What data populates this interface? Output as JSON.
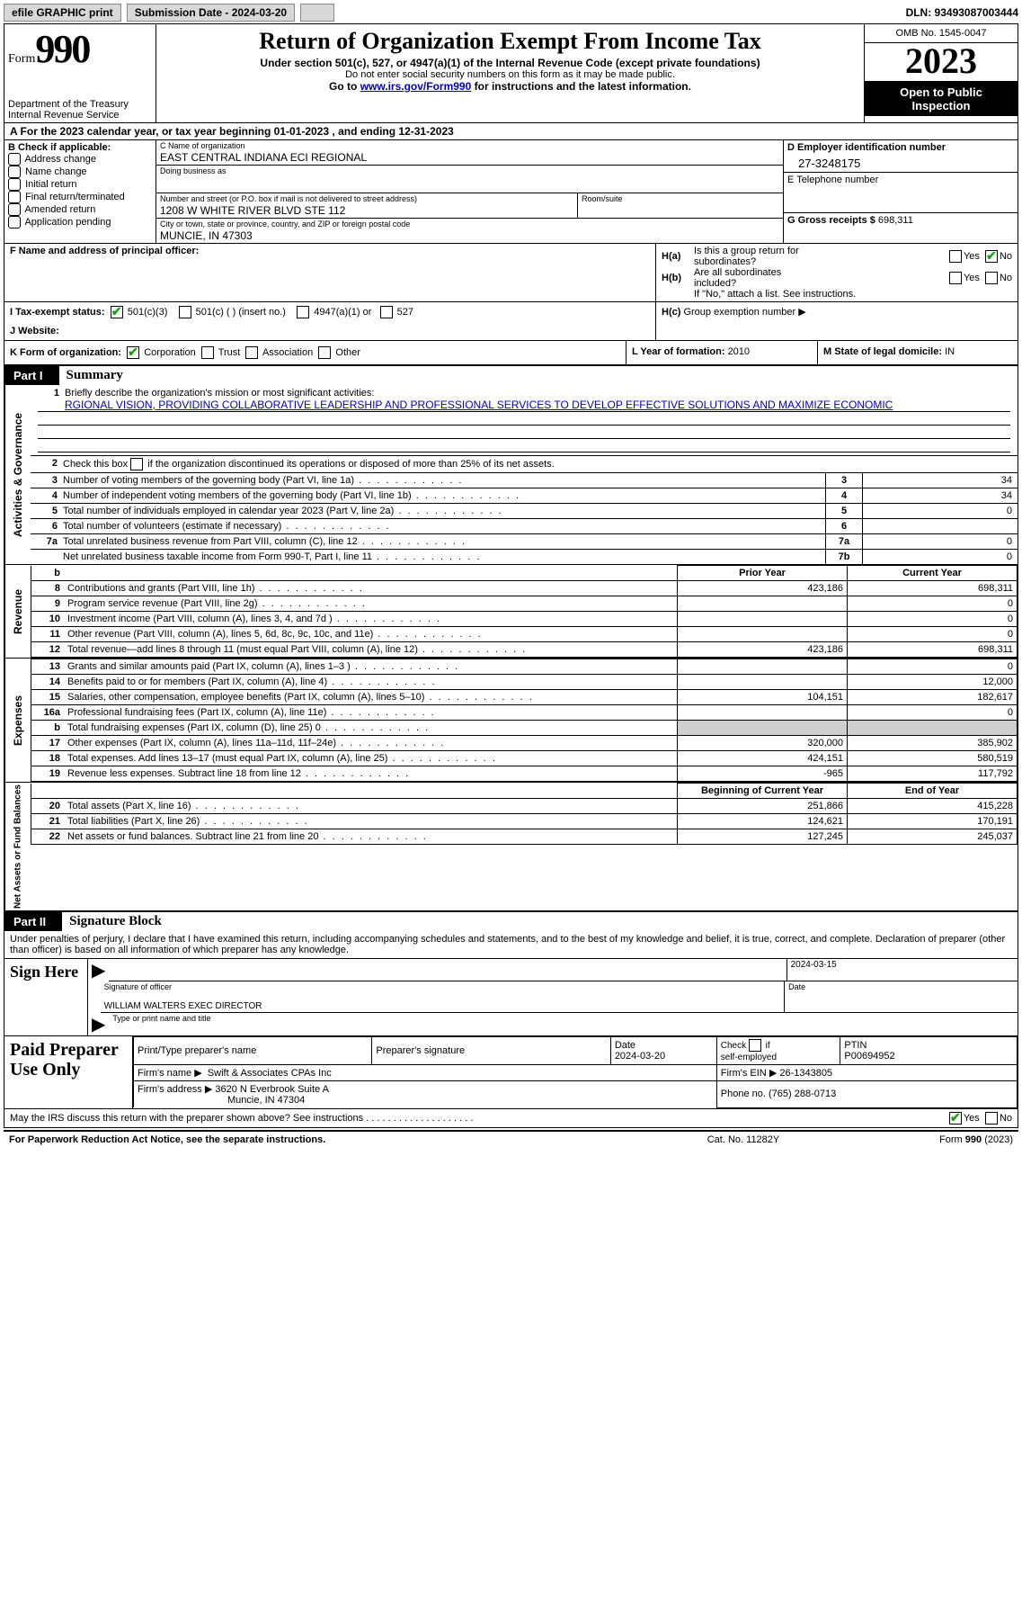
{
  "topbar": {
    "efile": "efile GRAPHIC print",
    "sub_label": "Submission Date - 2024-03-20",
    "dln": "DLN: 93493087003444"
  },
  "header": {
    "form_word": "Form",
    "form_num": "990",
    "dept": "Department of the Treasury",
    "irs": "Internal Revenue Service",
    "title": "Return of Organization Exempt From Income Tax",
    "sub1": "Under section 501(c), 527, or 4947(a)(1) of the Internal Revenue Code (except private foundations)",
    "sub2": "Do not enter social security numbers on this form as it may be made public.",
    "sub3_pre": "Go to ",
    "sub3_link": "www.irs.gov/Form990",
    "sub3_post": " for instructions and the latest information.",
    "omb": "OMB No. 1545-0047",
    "year": "2023",
    "open1": "Open to Public",
    "open2": "Inspection"
  },
  "calendar": {
    "pre": "A  For the 2023 calendar year, or tax year beginning ",
    "begin": "01-01-2023",
    "mid": " , and ending ",
    "end": "12-31-2023"
  },
  "boxB": {
    "label": "B Check if applicable:",
    "items": [
      "Address change",
      "Name change",
      "Initial return",
      "Final return/terminated",
      "Amended return",
      "Application pending"
    ]
  },
  "boxC": {
    "name_lbl": "C Name of organization",
    "name": "EAST CENTRAL INDIANA ECI REGIONAL",
    "dba_lbl": "Doing business as",
    "dba": "",
    "street_lbl": "Number and street (or P.O. box if mail is not delivered to street address)",
    "street": "1208 W WHITE RIVER BLVD STE 112",
    "suite_lbl": "Room/suite",
    "suite": "",
    "city_lbl": "City or town, state or province, country, and ZIP or foreign postal code",
    "city": "MUNCIE, IN  47303"
  },
  "boxD": {
    "ein_lbl": "D Employer identification number",
    "ein": "27-3248175",
    "phone_lbl": "E Telephone number",
    "phone": "",
    "gross_lbl": "G Gross receipts $ ",
    "gross": "698,311"
  },
  "boxF": {
    "lbl": "F  Name and address of principal officer:",
    "val": ""
  },
  "boxH": {
    "a_lbl": "H(a)",
    "a_txt1": "Is this a group return for",
    "a_txt2": "subordinates?",
    "b_lbl": "H(b)",
    "b_txt1": "Are all subordinates",
    "b_txt2": "included?",
    "note": "If \"No,\" attach a list. See instructions.",
    "c_lbl": "H(c)",
    "c_txt": "Group exemption number ",
    "yes": "Yes",
    "no": "No"
  },
  "boxI": {
    "lbl": "I   Tax-exempt status:",
    "o1": "501(c)(3)",
    "o2": "501(c) (  ) (insert no.)",
    "o3": "4947(a)(1) or",
    "o4": "527"
  },
  "boxJ": {
    "lbl": "J   Website: ",
    "val": ""
  },
  "boxK": {
    "lbl": "K Form of organization:",
    "o1": "Corporation",
    "o2": "Trust",
    "o3": "Association",
    "o4": "Other"
  },
  "boxL": {
    "lbl": "L Year of formation: ",
    "val": "2010"
  },
  "boxM": {
    "lbl": "M State of legal domicile: ",
    "val": "IN"
  },
  "part1": {
    "num": "Part I",
    "title": "Summary"
  },
  "mission": {
    "num": "1",
    "lbl": "Briefly describe the organization's mission or most significant activities:",
    "text": "RGIONAL VISION, PROVIDING COLLABORATIVE LEADERSHIP AND PROFESSIONAL SERVICES TO DEVELOP EFFECTIVE SOLUTIONS AND MAXIMIZE ECONOMIC"
  },
  "gov": {
    "vlabel": "Activities & Governance",
    "l2": {
      "n": "2",
      "t": "Check this box  if the organization discontinued its operations or disposed of more than 25% of its net assets."
    },
    "rows": [
      {
        "n": "3",
        "t": "Number of voting members of the governing body (Part VI, line 1a)",
        "box": "3",
        "v": "34"
      },
      {
        "n": "4",
        "t": "Number of independent voting members of the governing body (Part VI, line 1b)",
        "box": "4",
        "v": "34"
      },
      {
        "n": "5",
        "t": "Total number of individuals employed in calendar year 2023 (Part V, line 2a)",
        "box": "5",
        "v": "0"
      },
      {
        "n": "6",
        "t": "Total number of volunteers (estimate if necessary)",
        "box": "6",
        "v": ""
      },
      {
        "n": "7a",
        "t": "Total unrelated business revenue from Part VIII, column (C), line 12",
        "box": "7a",
        "v": "0"
      },
      {
        "n": "",
        "t": "Net unrelated business taxable income from Form 990-T, Part I, line 11",
        "box": "7b",
        "v": "0"
      }
    ]
  },
  "rev": {
    "vlabel": "Revenue",
    "hdr_b": "b",
    "hdr_prior": "Prior Year",
    "hdr_curr": "Current Year",
    "rows": [
      {
        "n": "8",
        "t": "Contributions and grants (Part VIII, line 1h)",
        "p": "423,186",
        "c": "698,311"
      },
      {
        "n": "9",
        "t": "Program service revenue (Part VIII, line 2g)",
        "p": "",
        "c": "0"
      },
      {
        "n": "10",
        "t": "Investment income (Part VIII, column (A), lines 3, 4, and 7d )",
        "p": "",
        "c": "0"
      },
      {
        "n": "11",
        "t": "Other revenue (Part VIII, column (A), lines 5, 6d, 8c, 9c, 10c, and 11e)",
        "p": "",
        "c": "0"
      },
      {
        "n": "12",
        "t": "Total revenue—add lines 8 through 11 (must equal Part VIII, column (A), line 12)",
        "p": "423,186",
        "c": "698,311"
      }
    ]
  },
  "exp": {
    "vlabel": "Expenses",
    "rows": [
      {
        "n": "13",
        "t": "Grants and similar amounts paid (Part IX, column (A), lines 1–3 )",
        "p": "",
        "c": "0"
      },
      {
        "n": "14",
        "t": "Benefits paid to or for members (Part IX, column (A), line 4)",
        "p": "",
        "c": "12,000"
      },
      {
        "n": "15",
        "t": "Salaries, other compensation, employee benefits (Part IX, column (A), lines 5–10)",
        "p": "104,151",
        "c": "182,617"
      },
      {
        "n": "16a",
        "t": "Professional fundraising fees (Part IX, column (A), line 11e)",
        "p": "",
        "c": "0"
      },
      {
        "n": "b",
        "t": "Total fundraising expenses (Part IX, column (D), line 25) 0",
        "p": "SHADE",
        "c": "SHADE"
      },
      {
        "n": "17",
        "t": "Other expenses (Part IX, column (A), lines 11a–11d, 11f–24e)",
        "p": "320,000",
        "c": "385,902"
      },
      {
        "n": "18",
        "t": "Total expenses. Add lines 13–17 (must equal Part IX, column (A), line 25)",
        "p": "424,151",
        "c": "580,519"
      },
      {
        "n": "19",
        "t": "Revenue less expenses. Subtract line 18 from line 12",
        "p": "-965",
        "c": "117,792"
      }
    ]
  },
  "net": {
    "vlabel": "Net Assets or Fund Balances",
    "hdr_b": "Beginning of Current Year",
    "hdr_e": "End of Year",
    "rows": [
      {
        "n": "20",
        "t": "Total assets (Part X, line 16)",
        "p": "251,866",
        "c": "415,228"
      },
      {
        "n": "21",
        "t": "Total liabilities (Part X, line 26)",
        "p": "124,621",
        "c": "170,191"
      },
      {
        "n": "22",
        "t": "Net assets or fund balances. Subtract line 21 from line 20",
        "p": "127,245",
        "c": "245,037"
      }
    ]
  },
  "part2": {
    "num": "Part II",
    "title": "Signature Block"
  },
  "sig": {
    "decl": "Under penalties of perjury, I declare that I have examined this return, including accompanying schedules and statements, and to the best of my knowledge and belief, it is true, correct, and complete. Declaration of preparer (other than officer) is based on all information of which preparer has any knowledge.",
    "sign_here": "Sign Here",
    "sig_lbl": "Signature of officer",
    "officer": "WILLIAM WALTERS  EXEC DIRECTOR",
    "type_lbl": "Type or print name and title",
    "date_lbl": "Date",
    "date": "2024-03-15"
  },
  "prep": {
    "title": "Paid Preparer Use Only",
    "name_lbl": "Print/Type preparer's name",
    "name": "",
    "sig_lbl": "Preparer's signature",
    "pdate_lbl": "Date",
    "pdate": "2024-03-20",
    "check_lbl": "Check       if self-employed",
    "ptin_lbl": "PTIN",
    "ptin": "P00694952",
    "firm_name_lbl": "Firm's name   ",
    "firm_name": "Swift & Associates CPAs Inc",
    "firm_ein_lbl": "Firm's EIN  ",
    "firm_ein": "26-1343805",
    "firm_addr_lbl": "Firm's address ",
    "firm_addr1": "3620 N Everbrook Suite A",
    "firm_addr2": "Muncie, IN   47304",
    "phone_lbl": "Phone no. ",
    "phone": "(765) 288-0713"
  },
  "discuss": {
    "t": "May the IRS discuss this return with the preparer shown above? See instructions .  .  .  .  .  .  .  .  .  .  .  .  .  .  .  .  .  .  .  .",
    "yes": "Yes",
    "no": "No"
  },
  "footer": {
    "l": "For Paperwork Reduction Act Notice, see the separate instructions.",
    "m": "Cat. No. 11282Y",
    "r": "Form 990 (2023)"
  }
}
